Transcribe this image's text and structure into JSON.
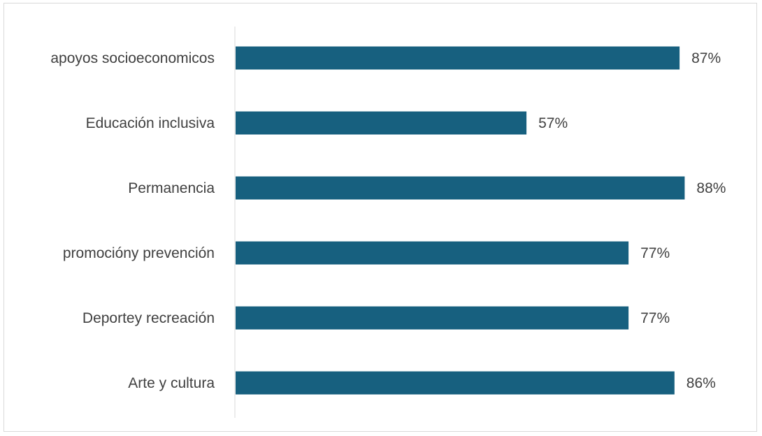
{
  "chart_data": {
    "type": "bar",
    "orientation": "horizontal",
    "categories": [
      "apoyos socioeconomicos",
      "Educación inclusiva",
      "Permanencia",
      "promocióny prevención",
      "Deportey recreación",
      "Arte y cultura"
    ],
    "values": [
      87,
      57,
      88,
      77,
      77,
      86
    ],
    "data_labels": [
      "87%",
      "57%",
      "88%",
      "77%",
      "77%",
      "86%"
    ],
    "value_unit": "%",
    "xlim": [
      0,
      100
    ],
    "grid": false,
    "legend": "none",
    "colors": {
      "bar": "#17607f",
      "text": "#404040",
      "axis": "#d9d9d9"
    }
  }
}
